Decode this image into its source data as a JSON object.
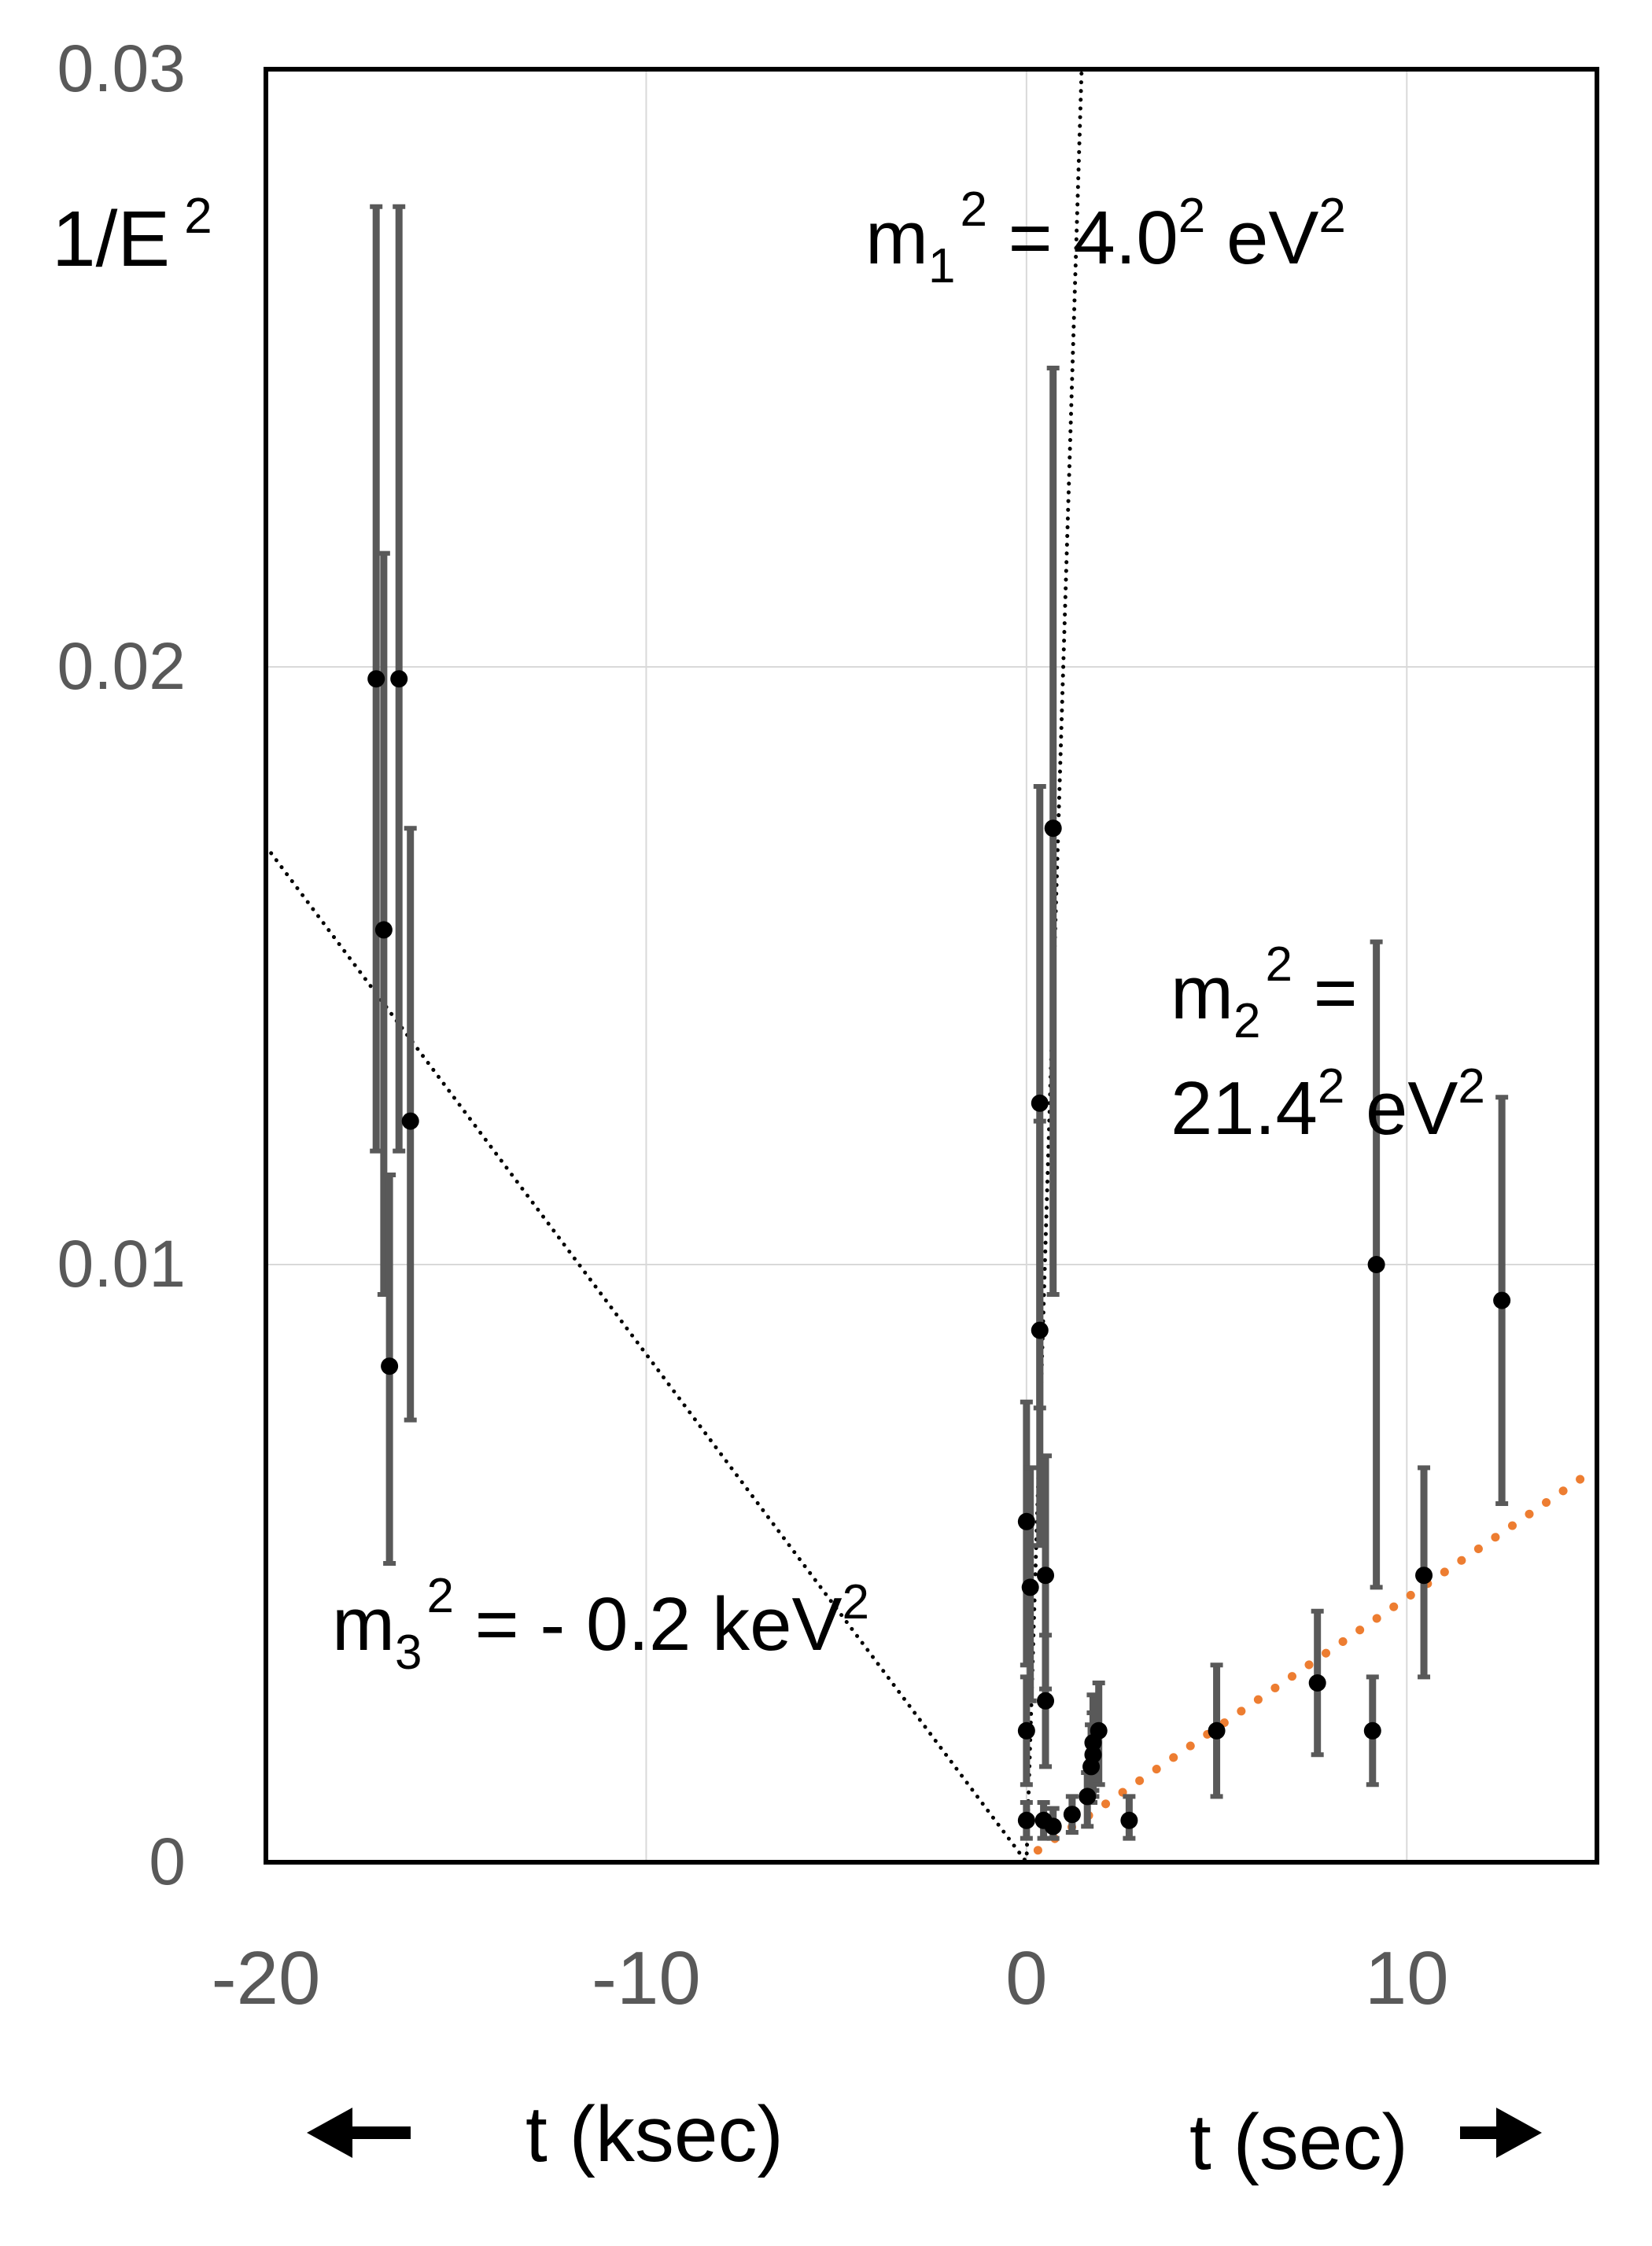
{
  "chart_data": {
    "type": "scatter",
    "title": "",
    "ylabel": "1/E",
    "ylabel_sup": "2",
    "ylim": [
      0,
      0.03
    ],
    "yticks": [
      {
        "value": 0,
        "label": "0"
      },
      {
        "value": 0.01,
        "label": "0.01"
      },
      {
        "value": 0.02,
        "label": "0.02"
      },
      {
        "value": 0.03,
        "label": "0.03"
      }
    ],
    "xlim": [
      -20,
      15
    ],
    "xticks": [
      {
        "value": -20,
        "label": "-20"
      },
      {
        "value": -10,
        "label": "-10"
      },
      {
        "value": 0,
        "label": "0"
      },
      {
        "value": 10,
        "label": "10"
      }
    ],
    "xlabel_left": "t (ksec)",
    "xlabel_right": "t (sec)",
    "grid": true,
    "series": [
      {
        "points": [
          {
            "x": -17.1,
            "y": 0.0198,
            "lo": 0.0119,
            "hi": 0.0277
          },
          {
            "x": -16.5,
            "y": 0.0198,
            "lo": 0.0119,
            "hi": 0.0277
          },
          {
            "x": -16.9,
            "y": 0.0156,
            "lo": 0.0095,
            "hi": 0.0219
          },
          {
            "x": -16.2,
            "y": 0.0124,
            "lo": 0.0074,
            "hi": 0.0173
          },
          {
            "x": -16.75,
            "y": 0.0083,
            "lo": 0.005,
            "hi": 0.0115
          },
          {
            "x": 0.0,
            "y": 0.0057,
            "lo": 0.0033,
            "hi": 0.0077
          },
          {
            "x": 0.1,
            "y": 0.0046,
            "lo": 0.0027,
            "hi": 0.0066
          },
          {
            "x": 0.0,
            "y": 0.0022,
            "lo": 0.0013,
            "hi": 0.0031
          },
          {
            "x": 0.0,
            "y": 0.0007,
            "lo": 0.0004,
            "hi": 0.001
          },
          {
            "x": 0.35,
            "y": 0.0127,
            "lo": 0.0076,
            "hi": 0.018
          },
          {
            "x": 0.35,
            "y": 0.0089,
            "lo": 0.0053,
            "hi": 0.0124
          },
          {
            "x": 0.5,
            "y": 0.0048,
            "lo": 0.0029,
            "hi": 0.0068
          },
          {
            "x": 0.5,
            "y": 0.0027,
            "lo": 0.0016,
            "hi": 0.0038
          },
          {
            "x": 0.7,
            "y": 0.0173,
            "lo": 0.0095,
            "hi": 0.025
          },
          {
            "x": 0.45,
            "y": 0.0007,
            "lo": 0.0004,
            "hi": 0.001
          },
          {
            "x": 0.7,
            "y": 0.0006,
            "lo": 0.0004,
            "hi": 0.0009
          },
          {
            "x": 1.2,
            "y": 0.0008,
            "lo": 0.0005,
            "hi": 0.0011
          },
          {
            "x": 1.6,
            "y": 0.0011,
            "lo": 0.0006,
            "hi": 0.0015
          },
          {
            "x": 1.7,
            "y": 0.0016,
            "lo": 0.001,
            "hi": 0.0023
          },
          {
            "x": 1.75,
            "y": 0.0018,
            "lo": 0.0011,
            "hi": 0.0025
          },
          {
            "x": 1.75,
            "y": 0.002,
            "lo": 0.0012,
            "hi": 0.0028
          },
          {
            "x": 1.9,
            "y": 0.0022,
            "lo": 0.0013,
            "hi": 0.003
          },
          {
            "x": 2.7,
            "y": 0.0007,
            "lo": 0.0004,
            "hi": 0.0011
          },
          {
            "x": 5.0,
            "y": 0.0022,
            "lo": 0.0011,
            "hi": 0.0033
          },
          {
            "x": 7.65,
            "y": 0.003,
            "lo": 0.0018,
            "hi": 0.0042
          },
          {
            "x": 9.1,
            "y": 0.0022,
            "lo": 0.0013,
            "hi": 0.0031
          },
          {
            "x": 9.2,
            "y": 0.01,
            "lo": 0.0046,
            "hi": 0.0154
          },
          {
            "x": 10.45,
            "y": 0.0048,
            "lo": 0.0031,
            "hi": 0.0066
          },
          {
            "x": 12.5,
            "y": 0.0094,
            "lo": 0.006,
            "hi": 0.0128
          }
        ]
      }
    ],
    "fit_lines": [
      {
        "color": "#000000",
        "style": "dotted",
        "x": [
          0,
          1.45
        ],
        "y": [
          0,
          0.03
        ]
      },
      {
        "color": "#000000",
        "style": "dotted",
        "x": [
          -20,
          0
        ],
        "y": [
          0.017,
          0
        ]
      },
      {
        "color": "#ed7d31",
        "style": "dotted",
        "x": [
          0.3,
          15
        ],
        "y": [
          0.0002,
          0.0066
        ]
      }
    ],
    "annotations": [
      {
        "name": "m1",
        "base": "m",
        "sub": "1",
        "sup": "2",
        "eq": " = 4.0",
        "eq_sup": "2",
        "unit": " eV",
        "unit_sup": "2"
      },
      {
        "name": "m2",
        "base": "m",
        "sub": "2",
        "sup": "2",
        "eq": " =",
        "value": "21.4",
        "value_sup": "2",
        "unit": " eV",
        "unit_sup": "2"
      },
      {
        "name": "m3",
        "base": "m",
        "sub": "3",
        "sup": "2",
        "eq": " = - 0.2 keV",
        "eq_sup": "2"
      }
    ],
    "colors": {
      "frame": "#000000",
      "grid": "#d9d9d9",
      "errorbar": "#595959",
      "marker": "#000000",
      "fit_orange": "#ed7d31"
    }
  }
}
